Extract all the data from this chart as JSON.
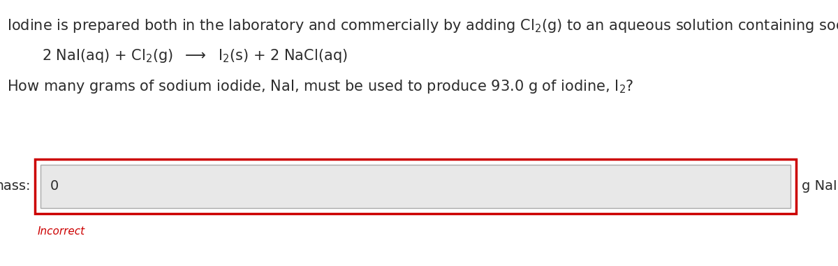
{
  "bg_color": "#ffffff",
  "text_color": "#2c2c2c",
  "mass_label": "mass:",
  "input_value": "0",
  "unit_label": "g NaI",
  "incorrect_text": "Incorrect",
  "incorrect_color": "#cc0000",
  "box_border_color": "#cc0000",
  "input_bg": "#e8e8e8",
  "input_border": "#aaaaaa",
  "font_size_main": 15,
  "font_size_eq": 15,
  "font_size_question": 15,
  "font_size_label": 14,
  "font_size_incorrect": 11
}
